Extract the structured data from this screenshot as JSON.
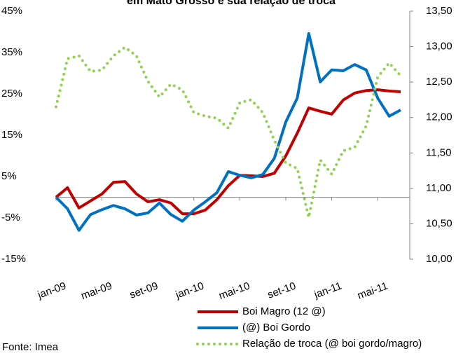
{
  "chart_data": {
    "type": "line",
    "title": "em Mato Grosso e sua relação de troca",
    "source": "Fonte: Imea",
    "categories": [
      "jan-09",
      null,
      null,
      null,
      "mai-09",
      null,
      null,
      null,
      "set-09",
      null,
      null,
      null,
      "jan-10",
      null,
      null,
      null,
      "mai-10",
      null,
      null,
      null,
      "set-10",
      null,
      null,
      null,
      "jan-11",
      null,
      null,
      null,
      "mai-11",
      null,
      null
    ],
    "ylim": [
      -15,
      45
    ],
    "yticks": [
      {
        "value": -15,
        "label": "-15%"
      },
      {
        "value": -5,
        "label": "-5%"
      },
      {
        "value": 5,
        "label": "5%"
      },
      {
        "value": 15,
        "label": "15%"
      },
      {
        "value": 25,
        "label": "25%"
      },
      {
        "value": 35,
        "label": "35%"
      },
      {
        "value": 45,
        "label": "45%"
      }
    ],
    "y2lim": [
      10,
      13.5
    ],
    "y2ticks": [
      {
        "value": 10,
        "label": "10,00"
      },
      {
        "value": 10.5,
        "label": "10,50"
      },
      {
        "value": 11,
        "label": "11,00"
      },
      {
        "value": 11.5,
        "label": "11,50"
      },
      {
        "value": 12,
        "label": "12,00"
      },
      {
        "value": 12.5,
        "label": "12,50"
      },
      {
        "value": 13,
        "label": "13,00"
      },
      {
        "value": 13.5,
        "label": "13,50"
      }
    ],
    "series": [
      {
        "name": "Boi Magro (12 @)",
        "color": "#c00000",
        "style": "solid",
        "values": [
          0,
          2.3,
          -2.6,
          -0.9,
          0.8,
          3.6,
          3.8,
          0.8,
          -1.1,
          -0.6,
          -1.4,
          -4.0,
          -4.0,
          -3.1,
          -0.6,
          2.8,
          5.3,
          5.2,
          5.0,
          5.8,
          10,
          15.5,
          21.6,
          20.8,
          20.1,
          23.5,
          25.2,
          25.8,
          26,
          25.7,
          25.5
        ]
      },
      {
        "name": "(@) Boi Gordo",
        "color": "#0070c0",
        "style": "solid",
        "values": [
          0,
          -2.8,
          -8,
          -4.2,
          -3,
          -2,
          -2.8,
          -4.3,
          -3.8,
          -1.4,
          -4.2,
          -5.8,
          -3.1,
          -1.1,
          1.1,
          6.2,
          5.3,
          4.7,
          5.5,
          9.4,
          18.2,
          24,
          39.6,
          27.9,
          30.8,
          30.6,
          32.1,
          30.8,
          24,
          19.6,
          21.1
        ]
      },
      {
        "name": "Relação de troca (@ boi gordo/magro)",
        "color": "#92d050",
        "style": "dotted",
        "axis": "y2",
        "values": [
          12.15,
          12.83,
          12.87,
          12.65,
          12.67,
          12.87,
          12.99,
          12.87,
          12.51,
          12.29,
          12.47,
          12.39,
          12.07,
          12.02,
          11.99,
          11.85,
          12.21,
          12.25,
          12.07,
          11.68,
          11.36,
          11.28,
          10.59,
          11.4,
          11.2,
          11.53,
          11.58,
          11.88,
          12.57,
          12.77,
          12.59
        ]
      }
    ]
  }
}
